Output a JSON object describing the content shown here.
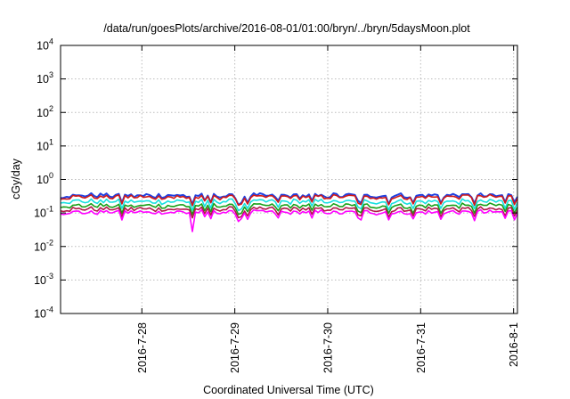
{
  "chart_data": {
    "type": "line",
    "title": "/data/run/goesPlots/archive/2016-08-01/01:00/bryn/../bryn/5daysMoon.plot",
    "xlabel": "Coordinated Universal Time (UTC)",
    "ylabel": "cGy/day",
    "yscale": "log",
    "ylim": [
      0.0001,
      10000
    ],
    "xlim": [
      "2016-07-27 03:00",
      "2016-08-01 01:00"
    ],
    "grid": true,
    "y_ticks": [
      {
        "base": "10",
        "exp": "-4"
      },
      {
        "base": "10",
        "exp": "-3"
      },
      {
        "base": "10",
        "exp": "-2"
      },
      {
        "base": "10",
        "exp": "-1"
      },
      {
        "base": "10",
        "exp": "0"
      },
      {
        "base": "10",
        "exp": "1"
      },
      {
        "base": "10",
        "exp": "2"
      },
      {
        "base": "10",
        "exp": "3"
      },
      {
        "base": "10",
        "exp": "4"
      }
    ],
    "x_ticks": [
      {
        "label": "2016-7-28",
        "date": "2016-07-28 00:00"
      },
      {
        "label": "2016-7-29",
        "date": "2016-07-29 00:00"
      },
      {
        "label": "2016-7-30",
        "date": "2016-07-30 00:00"
      },
      {
        "label": "2016-7-31",
        "date": "2016-07-31 00:00"
      },
      {
        "label": "2016-8-1",
        "date": "2016-08-01 00:00"
      }
    ],
    "series": [
      {
        "color": "#2040e0",
        "base": 0.33
      },
      {
        "color": "#d01818",
        "base": 0.3
      },
      {
        "color": "#18e0e0",
        "base": 0.22
      },
      {
        "color": "#18a018",
        "base": 0.165
      },
      {
        "color": "#b01848",
        "base": 0.13
      },
      {
        "color": "#ff00ff",
        "base": 0.105
      }
    ]
  }
}
